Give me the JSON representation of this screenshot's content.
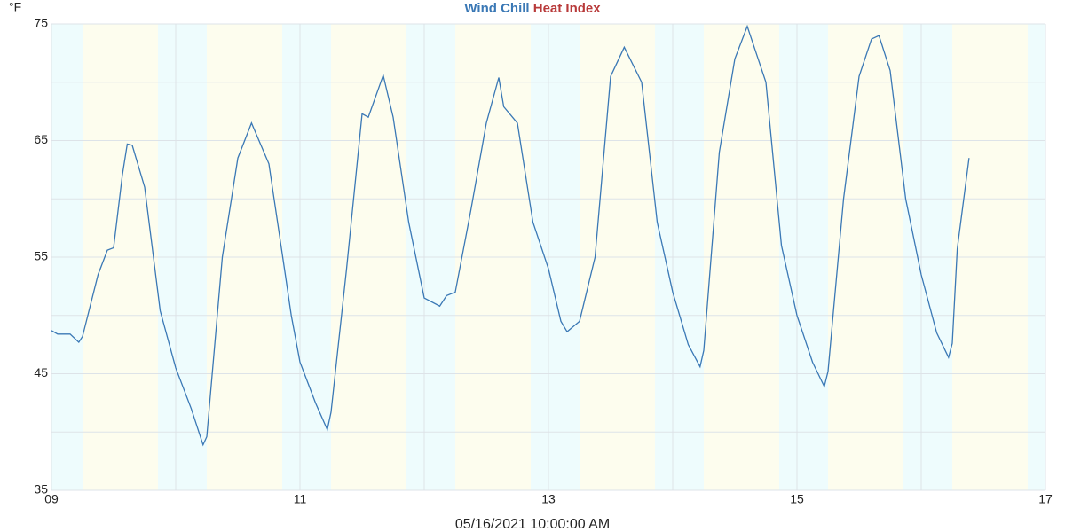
{
  "chart_data": {
    "type": "line",
    "y_unit": "°F",
    "x_label": "05/16/2021 10:00:00 AM",
    "x": [
      9.0,
      9.05,
      9.15,
      9.22,
      9.25,
      9.375,
      9.45,
      9.5,
      9.57,
      9.61,
      9.65,
      9.75,
      9.875,
      10.0,
      10.125,
      10.22,
      10.25,
      10.375,
      10.5,
      10.61,
      10.75,
      10.875,
      10.93,
      11.0,
      11.125,
      11.22,
      11.25,
      11.375,
      11.5,
      11.55,
      11.67,
      11.75,
      11.875,
      12.0,
      12.125,
      12.18,
      12.25,
      12.375,
      12.5,
      12.6,
      12.64,
      12.75,
      12.875,
      13.0,
      13.1,
      13.15,
      13.25,
      13.375,
      13.5,
      13.61,
      13.75,
      13.875,
      14.0,
      14.125,
      14.22,
      14.25,
      14.375,
      14.5,
      14.6,
      14.75,
      14.875,
      15.0,
      15.125,
      15.22,
      15.25,
      15.375,
      15.5,
      15.6,
      15.66,
      15.75,
      15.875,
      16.0,
      16.125,
      16.22,
      16.25,
      16.29,
      16.385
    ],
    "series": [
      {
        "name": "Wind Chill",
        "color": "#3a78b5",
        "values": [
          48.7,
          48.4,
          48.4,
          47.7,
          48.2,
          53.5,
          55.6,
          55.8,
          62,
          64.7,
          64.6,
          61,
          50.4,
          45.5,
          42,
          38.9,
          39.6,
          55,
          63.5,
          66.5,
          63,
          54,
          50,
          46,
          42.5,
          40.2,
          41.7,
          54,
          67.3,
          67,
          70.6,
          67,
          58,
          51.5,
          50.8,
          51.7,
          52,
          59,
          66.5,
          70.4,
          67.9,
          66.5,
          58,
          54,
          49.5,
          48.6,
          49.5,
          55,
          70.5,
          73,
          70,
          58,
          52,
          47.5,
          45.6,
          47,
          64,
          72,
          74.8,
          70,
          56,
          50,
          46,
          43.9,
          45.2,
          60,
          70.5,
          73.7,
          74,
          71,
          60,
          53.5,
          48.5,
          46.4,
          47.6,
          55.7,
          63.5
        ]
      },
      {
        "name": "Heat Index",
        "color": "#b83a3a",
        "values": [
          null,
          null,
          null,
          null,
          null,
          null,
          null,
          null,
          null,
          null,
          null,
          null,
          null,
          null,
          null,
          null,
          null,
          null,
          null,
          null,
          null,
          null,
          null,
          null,
          null,
          null,
          null,
          null,
          null,
          null,
          null,
          null,
          null,
          null,
          null,
          null,
          null,
          null,
          null,
          null,
          null,
          null,
          null,
          null,
          null,
          null,
          null,
          null,
          null,
          null,
          null,
          null,
          null,
          null,
          null,
          null,
          null,
          null,
          null,
          null,
          null,
          null,
          null,
          null,
          null,
          null,
          null,
          null,
          null,
          null,
          null,
          null,
          null,
          null,
          null,
          null,
          null
        ]
      }
    ],
    "xlim": [
      9,
      17
    ],
    "xticks": [
      {
        "value": 9,
        "label": "09"
      },
      11,
      13,
      15,
      17
    ],
    "x_minor_grid": [
      10,
      12,
      14,
      16
    ],
    "ylim": [
      35,
      75
    ],
    "yticks": [
      35,
      45,
      55,
      65,
      75
    ],
    "y_minor_grid": [
      40,
      50,
      60,
      70
    ],
    "grid": true,
    "daylight": [
      [
        9.25,
        9.857
      ],
      [
        10.25,
        10.857
      ],
      [
        11.25,
        11.857
      ],
      [
        12.25,
        12.857
      ],
      [
        13.25,
        13.857
      ],
      [
        14.25,
        14.857
      ],
      [
        15.25,
        15.857
      ],
      [
        16.25,
        16.857
      ]
    ],
    "day_color": "#fdfdee",
    "night_color": "#eefcfd"
  }
}
